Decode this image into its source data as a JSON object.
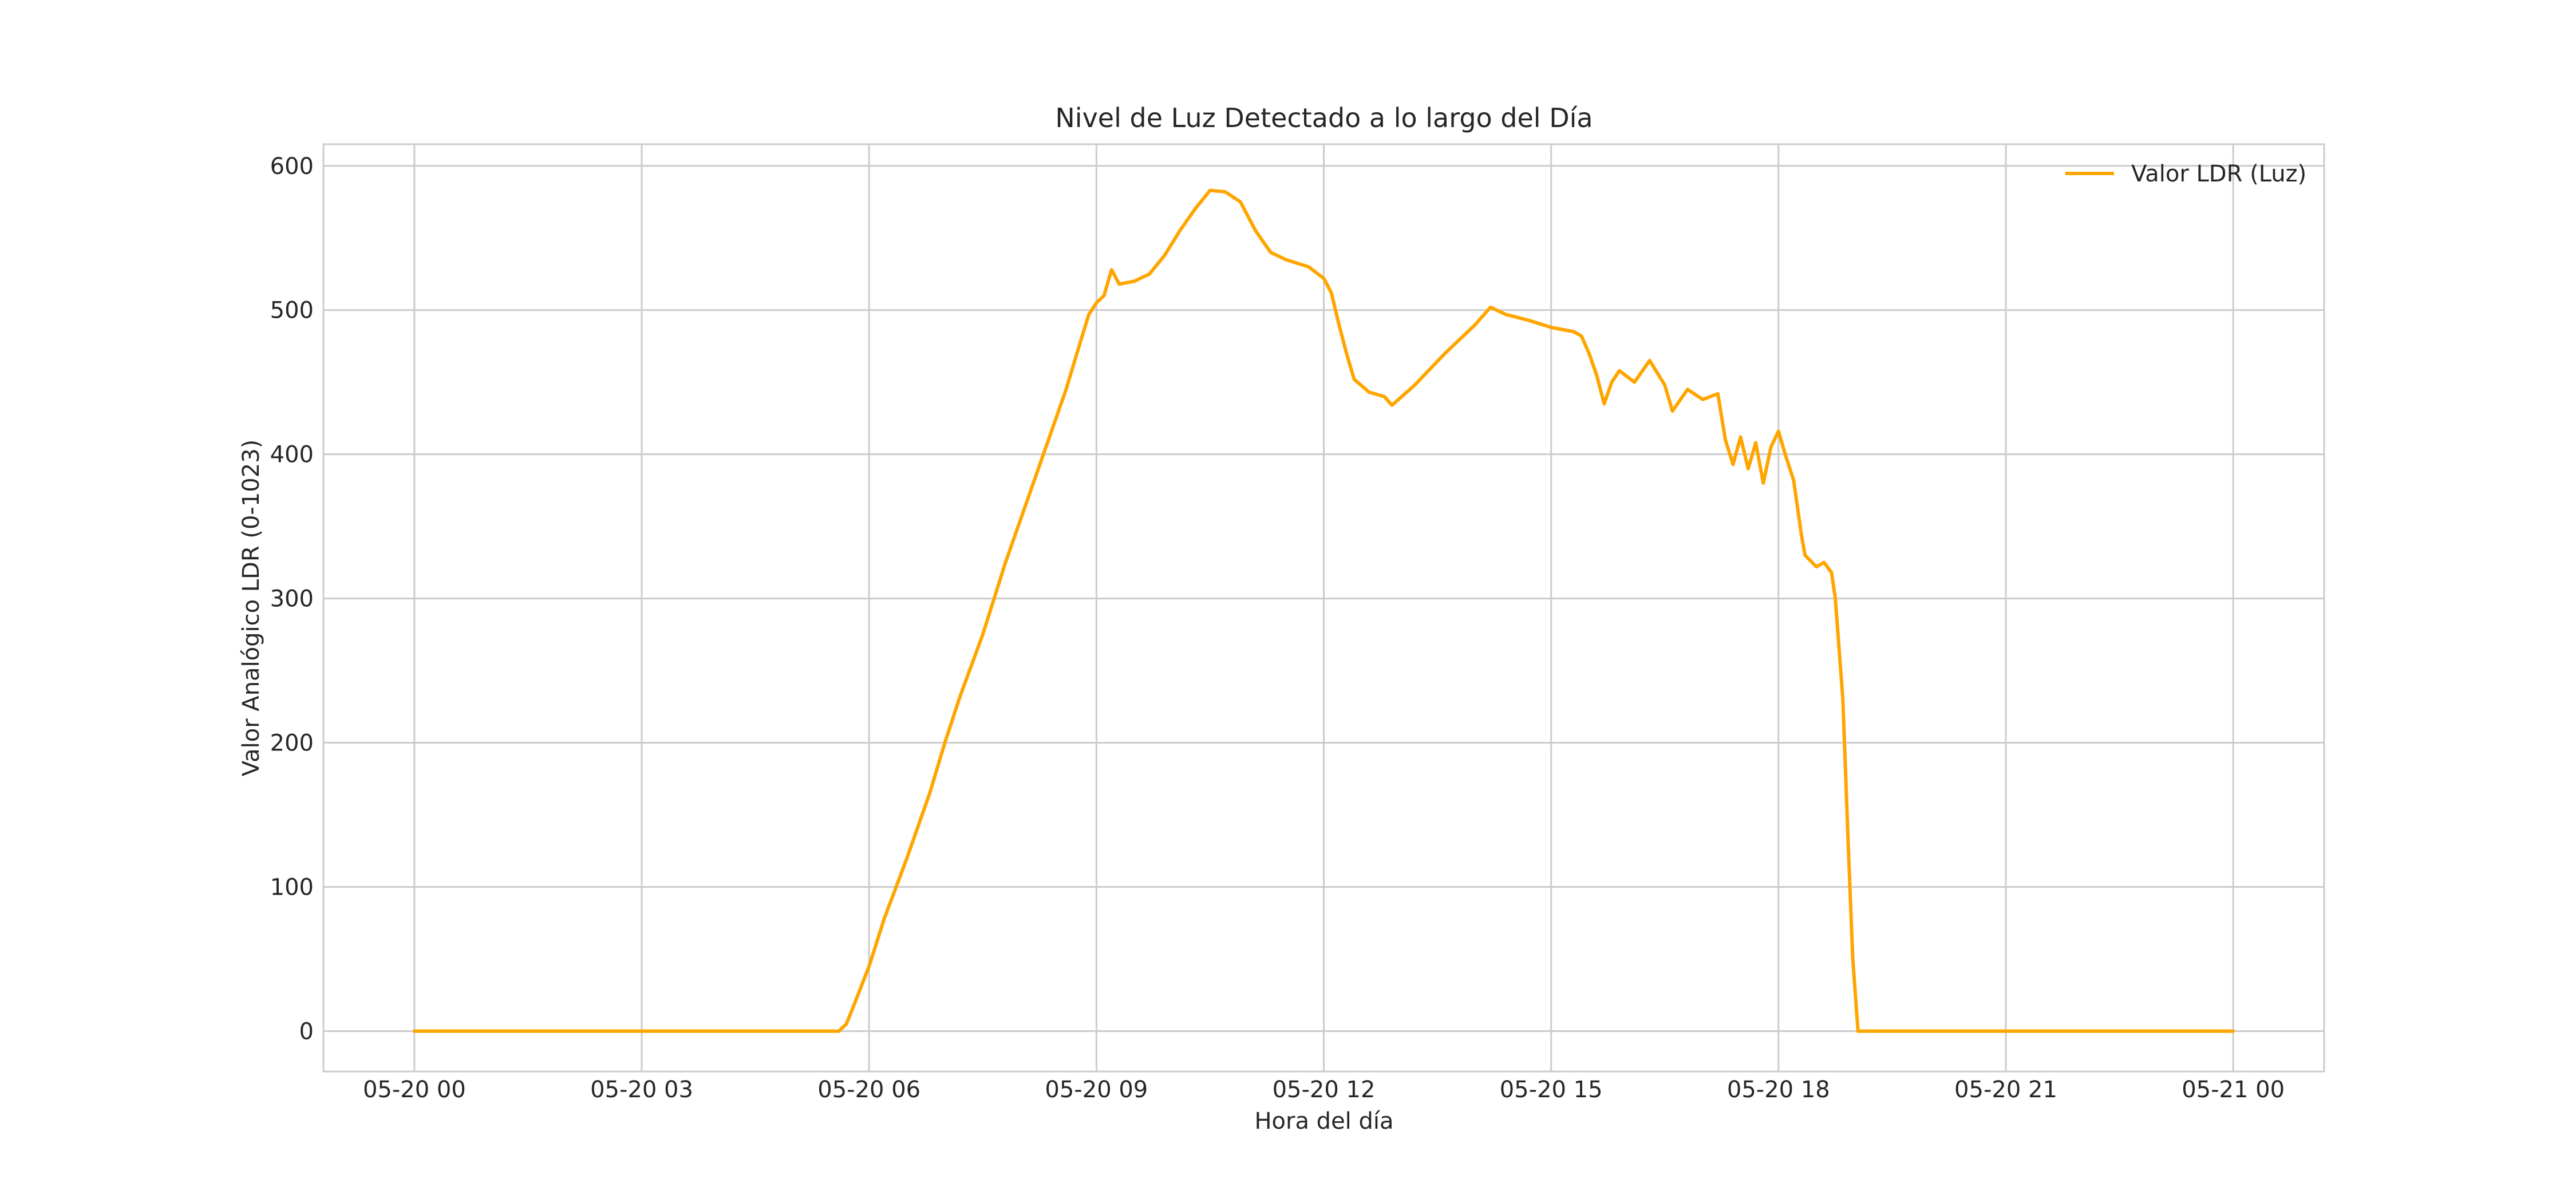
{
  "chart_data": {
    "type": "line",
    "title": "Nivel de Luz Detectado a lo largo del Día",
    "xlabel": "Hora del día",
    "ylabel": "Valor Analógico LDR (0-1023)",
    "x_tick_labels": [
      "05-20 00",
      "05-20 03",
      "05-20 06",
      "05-20 09",
      "05-20 12",
      "05-20 15",
      "05-20 18",
      "05-20 21",
      "05-21 00"
    ],
    "x_tick_hours": [
      0,
      3,
      6,
      9,
      12,
      15,
      18,
      21,
      24
    ],
    "x_range_hours": [
      -1.2,
      25.2
    ],
    "y_ticks": [
      0,
      100,
      200,
      300,
      400,
      500,
      600
    ],
    "ylim": [
      -28,
      615
    ],
    "grid": true,
    "legend_position": "top-right",
    "colors": {
      "series": "#FFA500",
      "grid": "#cccccc",
      "frame": "#cccccc",
      "text": "#262626"
    },
    "series": [
      {
        "name": "Valor LDR (Luz)",
        "x_unit": "hours since 05-20 00:00",
        "points": [
          [
            0.0,
            0
          ],
          [
            5.6,
            0
          ],
          [
            5.7,
            5
          ],
          [
            5.8,
            18
          ],
          [
            6.0,
            45
          ],
          [
            6.2,
            78
          ],
          [
            6.5,
            120
          ],
          [
            6.8,
            165
          ],
          [
            7.0,
            200
          ],
          [
            7.2,
            232
          ],
          [
            7.5,
            275
          ],
          [
            7.8,
            325
          ],
          [
            8.0,
            355
          ],
          [
            8.3,
            400
          ],
          [
            8.6,
            445
          ],
          [
            8.8,
            480
          ],
          [
            8.9,
            497
          ],
          [
            9.0,
            505
          ],
          [
            9.1,
            510
          ],
          [
            9.2,
            528
          ],
          [
            9.3,
            518
          ],
          [
            9.5,
            520
          ],
          [
            9.7,
            525
          ],
          [
            9.9,
            538
          ],
          [
            10.1,
            555
          ],
          [
            10.3,
            570
          ],
          [
            10.5,
            583
          ],
          [
            10.7,
            582
          ],
          [
            10.9,
            575
          ],
          [
            11.1,
            555
          ],
          [
            11.3,
            540
          ],
          [
            11.5,
            535
          ],
          [
            11.8,
            530
          ],
          [
            12.0,
            522
          ],
          [
            12.1,
            512
          ],
          [
            12.2,
            490
          ],
          [
            12.3,
            470
          ],
          [
            12.4,
            452
          ],
          [
            12.6,
            443
          ],
          [
            12.8,
            440
          ],
          [
            12.9,
            434
          ],
          [
            13.2,
            448
          ],
          [
            13.6,
            470
          ],
          [
            14.0,
            490
          ],
          [
            14.2,
            502
          ],
          [
            14.4,
            497
          ],
          [
            14.7,
            493
          ],
          [
            15.0,
            488
          ],
          [
            15.3,
            485
          ],
          [
            15.4,
            482
          ],
          [
            15.5,
            470
          ],
          [
            15.6,
            455
          ],
          [
            15.7,
            435
          ],
          [
            15.8,
            450
          ],
          [
            15.9,
            458
          ],
          [
            16.1,
            450
          ],
          [
            16.3,
            465
          ],
          [
            16.5,
            448
          ],
          [
            16.6,
            430
          ],
          [
            16.8,
            445
          ],
          [
            17.0,
            438
          ],
          [
            17.2,
            442
          ],
          [
            17.3,
            410
          ],
          [
            17.4,
            393
          ],
          [
            17.5,
            412
          ],
          [
            17.6,
            390
          ],
          [
            17.7,
            408
          ],
          [
            17.8,
            380
          ],
          [
            17.9,
            405
          ],
          [
            18.0,
            416
          ],
          [
            18.1,
            398
          ],
          [
            18.2,
            382
          ],
          [
            18.3,
            345
          ],
          [
            18.35,
            330
          ],
          [
            18.5,
            322
          ],
          [
            18.6,
            325
          ],
          [
            18.7,
            318
          ],
          [
            18.75,
            300
          ],
          [
            18.85,
            230
          ],
          [
            18.92,
            130
          ],
          [
            18.98,
            50
          ],
          [
            19.05,
            0
          ],
          [
            24.0,
            0
          ]
        ]
      }
    ]
  }
}
